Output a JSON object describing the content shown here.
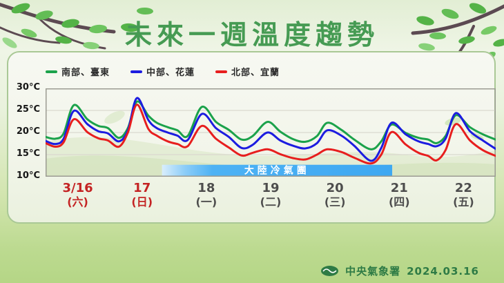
{
  "title": "未來一週溫度趨勢",
  "legend": [
    {
      "label": "南部、臺東",
      "color": "#1ba24b"
    },
    {
      "label": "中部、花蓮",
      "color": "#1c1ce0"
    },
    {
      "label": "北部、宜蘭",
      "color": "#e71e1e"
    }
  ],
  "footer": {
    "agency": "中央氣象署",
    "date": "2024.03.16"
  },
  "chart_data": {
    "type": "line",
    "title": "未來一週溫度趨勢",
    "xlabel": "",
    "ylabel": "°C",
    "ylim": [
      10,
      30
    ],
    "yticks": [
      30,
      25,
      20,
      15,
      10
    ],
    "ytick_suffix": "°C",
    "grid": true,
    "legend_position": "top-left",
    "x_days": [
      {
        "date": "3/16",
        "weekday": "(六)",
        "color": "#c42323"
      },
      {
        "date": "17",
        "weekday": "(日)",
        "color": "#c42323"
      },
      {
        "date": "18",
        "weekday": "(一)",
        "color": "#4d4d4d"
      },
      {
        "date": "19",
        "weekday": "(二)",
        "color": "#4d4d4d"
      },
      {
        "date": "20",
        "weekday": "(三)",
        "color": "#4d4d4d"
      },
      {
        "date": "21",
        "weekday": "(四)",
        "color": "#4d4d4d"
      },
      {
        "date": "22",
        "weekday": "(五)",
        "color": "#4d4d4d"
      }
    ],
    "x_unit_days": 7,
    "series": [
      {
        "name": "南部、臺東",
        "color": "#1ba24b",
        "points": [
          [
            0,
            19.0
          ],
          [
            0.15,
            18.6
          ],
          [
            0.28,
            19.8
          ],
          [
            0.44,
            26.2
          ],
          [
            0.65,
            23.0
          ],
          [
            0.82,
            21.5
          ],
          [
            0.97,
            21.0
          ],
          [
            1.14,
            18.8
          ],
          [
            1.28,
            21.0
          ],
          [
            1.42,
            27.0
          ],
          [
            1.6,
            23.8
          ],
          [
            1.73,
            22.2
          ],
          [
            1.9,
            21.2
          ],
          [
            2.05,
            20.5
          ],
          [
            2.21,
            19.2
          ],
          [
            2.43,
            25.8
          ],
          [
            2.65,
            22.4
          ],
          [
            2.85,
            20.6
          ],
          [
            3.05,
            18.4
          ],
          [
            3.22,
            19.2
          ],
          [
            3.45,
            22.4
          ],
          [
            3.65,
            20.2
          ],
          [
            3.85,
            18.5
          ],
          [
            4.04,
            17.9
          ],
          [
            4.22,
            19.2
          ],
          [
            4.38,
            22.2
          ],
          [
            4.6,
            20.6
          ],
          [
            4.8,
            18.4
          ],
          [
            5.06,
            16.2
          ],
          [
            5.22,
            18.0
          ],
          [
            5.38,
            21.8
          ],
          [
            5.6,
            19.9
          ],
          [
            5.8,
            18.8
          ],
          [
            5.95,
            18.4
          ],
          [
            6.08,
            17.6
          ],
          [
            6.22,
            19.2
          ],
          [
            6.38,
            23.9
          ],
          [
            6.6,
            21.2
          ],
          [
            6.8,
            19.6
          ],
          [
            7.0,
            18.4
          ]
        ]
      },
      {
        "name": "中部、花蓮",
        "color": "#1c1ce0",
        "points": [
          [
            0,
            18.1
          ],
          [
            0.15,
            17.4
          ],
          [
            0.28,
            18.6
          ],
          [
            0.44,
            24.9
          ],
          [
            0.65,
            21.9
          ],
          [
            0.82,
            20.3
          ],
          [
            0.97,
            19.8
          ],
          [
            1.14,
            18.0
          ],
          [
            1.28,
            20.5
          ],
          [
            1.42,
            27.8
          ],
          [
            1.6,
            22.8
          ],
          [
            1.73,
            21.0
          ],
          [
            1.9,
            20.0
          ],
          [
            2.05,
            19.3
          ],
          [
            2.21,
            18.3
          ],
          [
            2.43,
            24.2
          ],
          [
            2.65,
            21.0
          ],
          [
            2.85,
            19.0
          ],
          [
            3.05,
            16.5
          ],
          [
            3.22,
            17.2
          ],
          [
            3.45,
            20.0
          ],
          [
            3.65,
            18.2
          ],
          [
            3.85,
            17.0
          ],
          [
            4.04,
            16.4
          ],
          [
            4.22,
            17.6
          ],
          [
            4.38,
            20.5
          ],
          [
            4.6,
            19.3
          ],
          [
            4.8,
            17.0
          ],
          [
            5.06,
            13.6
          ],
          [
            5.22,
            16.5
          ],
          [
            5.38,
            22.2
          ],
          [
            5.6,
            19.6
          ],
          [
            5.8,
            18.0
          ],
          [
            5.95,
            17.4
          ],
          [
            6.08,
            16.9
          ],
          [
            6.22,
            18.6
          ],
          [
            6.38,
            24.4
          ],
          [
            6.6,
            20.3
          ],
          [
            6.8,
            18.2
          ],
          [
            7.0,
            16.3
          ]
        ]
      },
      {
        "name": "北部、宜蘭",
        "color": "#e71e1e",
        "points": [
          [
            0,
            17.6
          ],
          [
            0.15,
            16.8
          ],
          [
            0.28,
            17.8
          ],
          [
            0.44,
            23.0
          ],
          [
            0.65,
            20.1
          ],
          [
            0.82,
            18.7
          ],
          [
            0.97,
            18.2
          ],
          [
            1.14,
            16.8
          ],
          [
            1.28,
            20.0
          ],
          [
            1.42,
            26.3
          ],
          [
            1.6,
            20.8
          ],
          [
            1.73,
            19.3
          ],
          [
            1.9,
            18.0
          ],
          [
            2.05,
            17.4
          ],
          [
            2.21,
            16.9
          ],
          [
            2.43,
            21.5
          ],
          [
            2.65,
            18.6
          ],
          [
            2.85,
            16.6
          ],
          [
            3.05,
            14.8
          ],
          [
            3.22,
            15.4
          ],
          [
            3.45,
            16.2
          ],
          [
            3.65,
            15.1
          ],
          [
            3.85,
            14.2
          ],
          [
            4.04,
            13.9
          ],
          [
            4.22,
            15.0
          ],
          [
            4.38,
            16.2
          ],
          [
            4.6,
            15.6
          ],
          [
            4.8,
            14.3
          ],
          [
            5.06,
            13.0
          ],
          [
            5.22,
            15.0
          ],
          [
            5.38,
            20.1
          ],
          [
            5.6,
            17.3
          ],
          [
            5.8,
            15.4
          ],
          [
            5.95,
            14.7
          ],
          [
            6.08,
            13.7
          ],
          [
            6.22,
            16.0
          ],
          [
            6.38,
            21.9
          ],
          [
            6.6,
            18.2
          ],
          [
            6.8,
            16.0
          ],
          [
            7.0,
            14.7
          ]
        ]
      }
    ],
    "annotation_band": {
      "label": "大陸冷氣團",
      "t_start": 1.81,
      "t_end": 5.39,
      "temp_top": 12.7,
      "temp_bottom": 10,
      "color": "#3ea8f2",
      "label_color": "#ffffff"
    }
  }
}
